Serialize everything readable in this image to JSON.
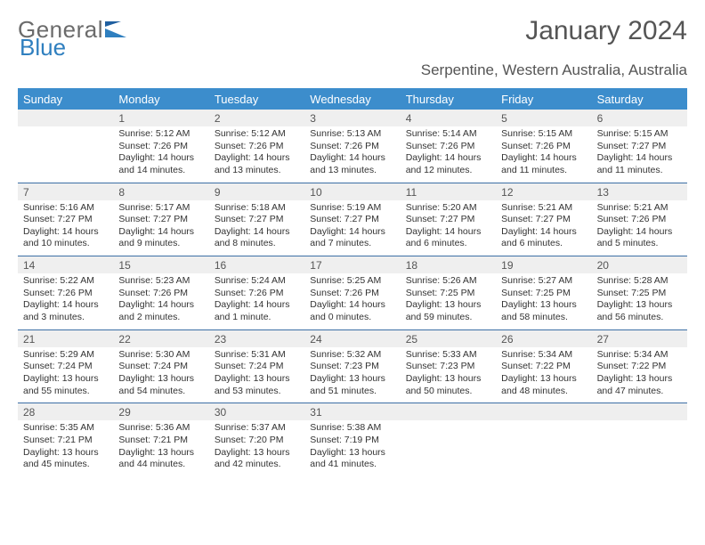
{
  "logo": {
    "part1": "General",
    "part2": "Blue"
  },
  "title": "January 2024",
  "location": "Serpentine, Western Australia, Australia",
  "colors": {
    "header_bg": "#3c8dcc",
    "header_text": "#ffffff",
    "daynum_bg": "#efefef",
    "rule": "#3c6fa5",
    "text": "#333333",
    "logo_grey": "#6b6b6b",
    "logo_blue": "#2f7fbf"
  },
  "weekdays": [
    "Sunday",
    "Monday",
    "Tuesday",
    "Wednesday",
    "Thursday",
    "Friday",
    "Saturday"
  ],
  "weeks": [
    {
      "nums": [
        "",
        "1",
        "2",
        "3",
        "4",
        "5",
        "6"
      ],
      "cells": [
        {
          "sunrise": "",
          "sunset": "",
          "daylight": ""
        },
        {
          "sunrise": "Sunrise: 5:12 AM",
          "sunset": "Sunset: 7:26 PM",
          "daylight": "Daylight: 14 hours and 14 minutes."
        },
        {
          "sunrise": "Sunrise: 5:12 AM",
          "sunset": "Sunset: 7:26 PM",
          "daylight": "Daylight: 14 hours and 13 minutes."
        },
        {
          "sunrise": "Sunrise: 5:13 AM",
          "sunset": "Sunset: 7:26 PM",
          "daylight": "Daylight: 14 hours and 13 minutes."
        },
        {
          "sunrise": "Sunrise: 5:14 AM",
          "sunset": "Sunset: 7:26 PM",
          "daylight": "Daylight: 14 hours and 12 minutes."
        },
        {
          "sunrise": "Sunrise: 5:15 AM",
          "sunset": "Sunset: 7:26 PM",
          "daylight": "Daylight: 14 hours and 11 minutes."
        },
        {
          "sunrise": "Sunrise: 5:15 AM",
          "sunset": "Sunset: 7:27 PM",
          "daylight": "Daylight: 14 hours and 11 minutes."
        }
      ]
    },
    {
      "nums": [
        "7",
        "8",
        "9",
        "10",
        "11",
        "12",
        "13"
      ],
      "cells": [
        {
          "sunrise": "Sunrise: 5:16 AM",
          "sunset": "Sunset: 7:27 PM",
          "daylight": "Daylight: 14 hours and 10 minutes."
        },
        {
          "sunrise": "Sunrise: 5:17 AM",
          "sunset": "Sunset: 7:27 PM",
          "daylight": "Daylight: 14 hours and 9 minutes."
        },
        {
          "sunrise": "Sunrise: 5:18 AM",
          "sunset": "Sunset: 7:27 PM",
          "daylight": "Daylight: 14 hours and 8 minutes."
        },
        {
          "sunrise": "Sunrise: 5:19 AM",
          "sunset": "Sunset: 7:27 PM",
          "daylight": "Daylight: 14 hours and 7 minutes."
        },
        {
          "sunrise": "Sunrise: 5:20 AM",
          "sunset": "Sunset: 7:27 PM",
          "daylight": "Daylight: 14 hours and 6 minutes."
        },
        {
          "sunrise": "Sunrise: 5:21 AM",
          "sunset": "Sunset: 7:27 PM",
          "daylight": "Daylight: 14 hours and 6 minutes."
        },
        {
          "sunrise": "Sunrise: 5:21 AM",
          "sunset": "Sunset: 7:26 PM",
          "daylight": "Daylight: 14 hours and 5 minutes."
        }
      ]
    },
    {
      "nums": [
        "14",
        "15",
        "16",
        "17",
        "18",
        "19",
        "20"
      ],
      "cells": [
        {
          "sunrise": "Sunrise: 5:22 AM",
          "sunset": "Sunset: 7:26 PM",
          "daylight": "Daylight: 14 hours and 3 minutes."
        },
        {
          "sunrise": "Sunrise: 5:23 AM",
          "sunset": "Sunset: 7:26 PM",
          "daylight": "Daylight: 14 hours and 2 minutes."
        },
        {
          "sunrise": "Sunrise: 5:24 AM",
          "sunset": "Sunset: 7:26 PM",
          "daylight": "Daylight: 14 hours and 1 minute."
        },
        {
          "sunrise": "Sunrise: 5:25 AM",
          "sunset": "Sunset: 7:26 PM",
          "daylight": "Daylight: 14 hours and 0 minutes."
        },
        {
          "sunrise": "Sunrise: 5:26 AM",
          "sunset": "Sunset: 7:25 PM",
          "daylight": "Daylight: 13 hours and 59 minutes."
        },
        {
          "sunrise": "Sunrise: 5:27 AM",
          "sunset": "Sunset: 7:25 PM",
          "daylight": "Daylight: 13 hours and 58 minutes."
        },
        {
          "sunrise": "Sunrise: 5:28 AM",
          "sunset": "Sunset: 7:25 PM",
          "daylight": "Daylight: 13 hours and 56 minutes."
        }
      ]
    },
    {
      "nums": [
        "21",
        "22",
        "23",
        "24",
        "25",
        "26",
        "27"
      ],
      "cells": [
        {
          "sunrise": "Sunrise: 5:29 AM",
          "sunset": "Sunset: 7:24 PM",
          "daylight": "Daylight: 13 hours and 55 minutes."
        },
        {
          "sunrise": "Sunrise: 5:30 AM",
          "sunset": "Sunset: 7:24 PM",
          "daylight": "Daylight: 13 hours and 54 minutes."
        },
        {
          "sunrise": "Sunrise: 5:31 AM",
          "sunset": "Sunset: 7:24 PM",
          "daylight": "Daylight: 13 hours and 53 minutes."
        },
        {
          "sunrise": "Sunrise: 5:32 AM",
          "sunset": "Sunset: 7:23 PM",
          "daylight": "Daylight: 13 hours and 51 minutes."
        },
        {
          "sunrise": "Sunrise: 5:33 AM",
          "sunset": "Sunset: 7:23 PM",
          "daylight": "Daylight: 13 hours and 50 minutes."
        },
        {
          "sunrise": "Sunrise: 5:34 AM",
          "sunset": "Sunset: 7:22 PM",
          "daylight": "Daylight: 13 hours and 48 minutes."
        },
        {
          "sunrise": "Sunrise: 5:34 AM",
          "sunset": "Sunset: 7:22 PM",
          "daylight": "Daylight: 13 hours and 47 minutes."
        }
      ]
    },
    {
      "nums": [
        "28",
        "29",
        "30",
        "31",
        "",
        "",
        ""
      ],
      "cells": [
        {
          "sunrise": "Sunrise: 5:35 AM",
          "sunset": "Sunset: 7:21 PM",
          "daylight": "Daylight: 13 hours and 45 minutes."
        },
        {
          "sunrise": "Sunrise: 5:36 AM",
          "sunset": "Sunset: 7:21 PM",
          "daylight": "Daylight: 13 hours and 44 minutes."
        },
        {
          "sunrise": "Sunrise: 5:37 AM",
          "sunset": "Sunset: 7:20 PM",
          "daylight": "Daylight: 13 hours and 42 minutes."
        },
        {
          "sunrise": "Sunrise: 5:38 AM",
          "sunset": "Sunset: 7:19 PM",
          "daylight": "Daylight: 13 hours and 41 minutes."
        },
        {
          "sunrise": "",
          "sunset": "",
          "daylight": ""
        },
        {
          "sunrise": "",
          "sunset": "",
          "daylight": ""
        },
        {
          "sunrise": "",
          "sunset": "",
          "daylight": ""
        }
      ]
    }
  ]
}
